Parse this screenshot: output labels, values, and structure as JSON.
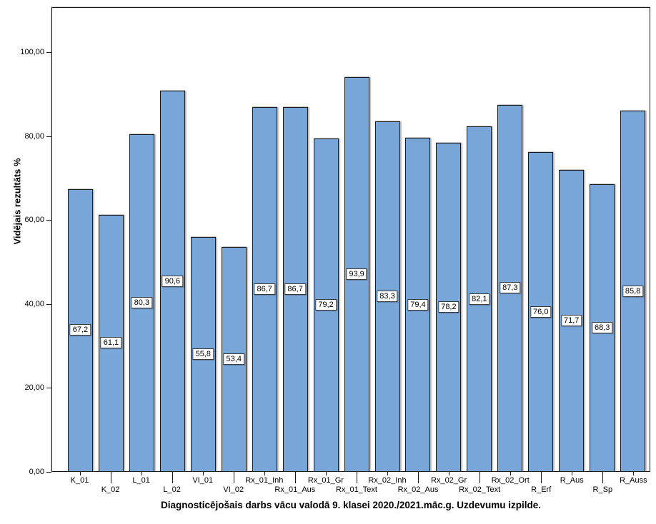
{
  "chart_data": {
    "type": "bar",
    "title": "Diagnosticējošais darbs vācu valodā 9. klasei 2020./2021.māc.g. Uzdevumu izpilde.",
    "xlabel": "",
    "ylabel": "Vidējais rezultāts %",
    "categories": [
      "K_01",
      "K_02",
      "L_01",
      "L_02",
      "VI_01",
      "VI_02",
      "Rx_01_Inh",
      "Rx_01_Aus",
      "Rx_01_Gr",
      "Rx_01_Text",
      "Rx_02_Inh",
      "Rx_02_Aus",
      "Rx_02_Gr",
      "Rx_02_Text",
      "Rx_02_Ort",
      "R_Erf",
      "R_Aus",
      "R_Sp",
      "R_Auss"
    ],
    "values": [
      67.2,
      61.1,
      80.3,
      90.6,
      55.8,
      53.4,
      86.7,
      86.7,
      79.2,
      93.9,
      83.3,
      79.4,
      78.2,
      82.1,
      87.3,
      76.0,
      71.7,
      68.3,
      85.8
    ],
    "value_labels": [
      "67,2",
      "61,1",
      "80,3",
      "90,6",
      "55,8",
      "53,4",
      "86,7",
      "86,7",
      "79,2",
      "93,9",
      "83,3",
      "79,4",
      "78,2",
      "82,1",
      "87,3",
      "76,0",
      "71,7",
      "68,3",
      "85,8"
    ],
    "ytick_values": [
      0,
      20,
      40,
      60,
      80,
      100
    ],
    "ytick_labels": [
      "0,00",
      "20,00",
      "40,00",
      "60,00",
      "80,00",
      "100,00"
    ],
    "ylim": [
      0,
      110.7
    ],
    "grid": false,
    "legend_position": "none",
    "x_label_rows": "staggered-alternating",
    "bar_color": "#79A6D8",
    "bar_border_color": "#1a1a1a",
    "frame_color": "#161616",
    "label_box_bg": "#ffffff",
    "label_box_border": "#3a3a3a"
  }
}
